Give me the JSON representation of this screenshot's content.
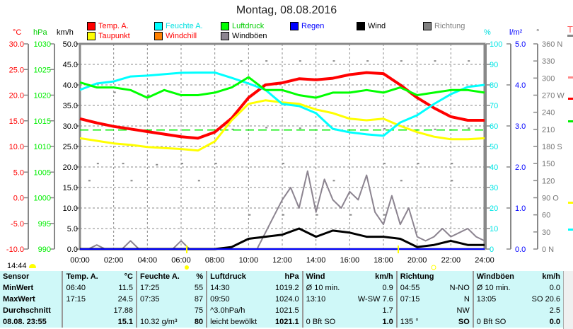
{
  "header": {
    "title": "Montag, 08.08.2016"
  },
  "legend": [
    {
      "label": "Temp. A.",
      "color": "#ff0000"
    },
    {
      "label": "Feuchte A.",
      "color": "#00ffff"
    },
    {
      "label": "Luftdruck",
      "color": "#00ff00"
    },
    {
      "label": "Regen",
      "color": "#0000ff"
    },
    {
      "label": "Wind",
      "color": "#000000"
    },
    {
      "label": "Richtung",
      "color": "#808080"
    },
    {
      "label": "Taupunkt",
      "color": "#ffff00"
    },
    {
      "label": "Windchill",
      "color": "#ff8000"
    },
    {
      "label": "Windböen",
      "color": "#8c8490"
    }
  ],
  "legend_text_colors": [
    "#ff0000",
    "#00e0e0",
    "#00cc00",
    "#0000ff",
    "#000000",
    "#808080",
    "#ff0000",
    "#ff0000",
    "#000000"
  ],
  "units": {
    "temp": "°C",
    "press": "hPa",
    "wind": "km/h",
    "hum": "%",
    "rain": "l/m²",
    "dir": "°",
    "cut": "T"
  },
  "now_time": "14:44",
  "chart_data": {
    "type": "line",
    "title": "Montag, 08.08.2016",
    "x_ticks": [
      "00:00",
      "02:00",
      "04:00",
      "06:00",
      "08:00",
      "10:00",
      "12:00",
      "14:00",
      "16:00",
      "18:00",
      "20:00",
      "22:00",
      "24:00"
    ],
    "xlim": [
      0,
      24
    ],
    "axes": {
      "temp": {
        "ylim": [
          -10,
          30
        ],
        "ticks": [
          "-10.0",
          "-5.0",
          "0.0",
          "5.0",
          "10.0",
          "15.0",
          "20.0",
          "25.0",
          "30.0"
        ]
      },
      "press": {
        "ylim": [
          990,
          1030
        ],
        "ticks": [
          "990",
          "995",
          "1000",
          "1005",
          "1010",
          "1015",
          "1020",
          "1025",
          "1030"
        ]
      },
      "wind": {
        "ylim": [
          0,
          50
        ],
        "ticks": [
          "0.0",
          "5.0",
          "10.0",
          "15.0",
          "20.0",
          "25.0",
          "30.0",
          "35.0",
          "40.0",
          "45.0",
          "50.0"
        ]
      },
      "hum": {
        "ylim": [
          0,
          100
        ],
        "ticks": [
          "0",
          "10",
          "20",
          "30",
          "40",
          "50",
          "60",
          "70",
          "80",
          "90",
          "100"
        ]
      },
      "rain": {
        "ylim": [
          0,
          5
        ],
        "ticks": [
          "0.0",
          "1.0",
          "2.0",
          "3.0",
          "4.0",
          "5.0"
        ]
      },
      "dir": {
        "ylim": [
          0,
          360
        ],
        "ticks": [
          "0  N",
          "30",
          "60",
          "90  O",
          "120",
          "150",
          "180 S",
          "210",
          "240",
          "270 W",
          "300",
          "330",
          "360 N"
        ]
      }
    },
    "reference_pressure": 1013.2,
    "series": [
      {
        "name": "Temp. A.",
        "axis": "temp",
        "color": "#ff0000",
        "x_step_h": 1,
        "values": [
          15.4,
          14.6,
          13.9,
          13.4,
          12.9,
          12.4,
          11.9,
          11.6,
          12.8,
          15.5,
          19.5,
          22.0,
          22.4,
          23.2,
          23.0,
          23.3,
          24.0,
          24.4,
          24.2,
          22.0,
          19.5,
          17.5,
          15.8,
          15.1,
          15.1
        ]
      },
      {
        "name": "Taupunkt",
        "axis": "temp",
        "color": "#ffff00",
        "x_step_h": 1,
        "values": [
          11.6,
          11.1,
          10.6,
          10.3,
          9.9,
          9.7,
          9.5,
          9.2,
          11.0,
          15.1,
          18.3,
          19.0,
          18.6,
          18.3,
          17.2,
          16.5,
          15.4,
          15.1,
          15.4,
          14.0,
          12.8,
          11.9,
          11.4,
          11.4,
          11.6
        ]
      },
      {
        "name": "Feuchte A.",
        "axis": "hum",
        "color": "#00ffff",
        "x_step_h": 1,
        "values": [
          77.6,
          80.7,
          81.7,
          84.1,
          84.5,
          85.2,
          85.9,
          86,
          86,
          83.4,
          80.7,
          77.6,
          70.7,
          69.7,
          66.2,
          58.6,
          56.9,
          55.9,
          55.2,
          61.7,
          65.2,
          70.7,
          75.5,
          79,
          80
        ]
      },
      {
        "name": "Luftdruck",
        "axis": "press",
        "color": "#00ff00",
        "x_step_h": 1,
        "values": [
          1022.5,
          1021.5,
          1021.5,
          1021.0,
          1019.5,
          1021.0,
          1020.0,
          1020.0,
          1020.5,
          1021.5,
          1023.5,
          1021.0,
          1021.0,
          1020.0,
          1019.5,
          1020.5,
          1020.5,
          1021.0,
          1020.5,
          1021.5,
          1020.0,
          1020.5,
          1021.0,
          1021.0,
          1020.5
        ]
      },
      {
        "name": "Windböen",
        "axis": "wind",
        "color": "#8c8490",
        "x_step_h": 0.5,
        "values": [
          0,
          0,
          1,
          0,
          0,
          0,
          2,
          0,
          0,
          0,
          0,
          0,
          2,
          0,
          0,
          0,
          0,
          0,
          0,
          0,
          0,
          0,
          4,
          8,
          12,
          15,
          10,
          19,
          9,
          17,
          12,
          10,
          14,
          12,
          18,
          9,
          6,
          13,
          6,
          10,
          3,
          2,
          3,
          5,
          3,
          4,
          5,
          3,
          2
        ]
      },
      {
        "name": "Wind",
        "axis": "wind",
        "color": "#000000",
        "x_step_h": 1,
        "values": [
          0,
          0,
          0,
          0,
          0,
          0,
          0,
          0,
          0,
          0.5,
          2.5,
          3,
          3.5,
          5,
          3,
          4.5,
          4,
          3,
          3,
          2.5,
          0.5,
          1,
          2,
          1,
          1
        ]
      },
      {
        "name": "Regen",
        "axis": "rain",
        "color": "#0000ff",
        "x_step_h": 24,
        "values": [
          0,
          0
        ]
      }
    ]
  },
  "table": {
    "headers": [
      "Sensor",
      "Temp. A.",
      "°C",
      "Feuchte A.",
      "%",
      "Luftdruck",
      "hPa",
      "Wind",
      "km/h",
      "Richtung",
      "",
      "Windböen",
      "km/h"
    ],
    "rows": [
      [
        "MinWert",
        "06:40",
        "11.5",
        "17:25",
        "55",
        "14:30",
        "1019.2",
        "Ø 10 min.",
        "0.9",
        "04:55",
        "N-NO",
        "Ø 10 min.",
        "0.0"
      ],
      [
        "MaxWert",
        "17:15",
        "24.5",
        "07:35",
        "87",
        "09:50",
        "1024.0",
        "13:10",
        "W-SW 7.6",
        "07:15",
        "N",
        "13:05",
        "SO 20.6"
      ],
      [
        "Durchschnitt",
        "",
        "17.88",
        "",
        "75",
        "^3.0hPa/h",
        "1021.5",
        "",
        "1.7",
        "",
        "NW",
        "",
        "2.5"
      ],
      [
        "08.08. 23:55",
        "",
        "15.1",
        "10.32 g/m³",
        "80",
        "leicht bewölkt",
        "1021.1",
        "0 Bft SO",
        "1.0",
        "135 °",
        "SO",
        "0 Bft SO",
        "0.0"
      ]
    ]
  }
}
